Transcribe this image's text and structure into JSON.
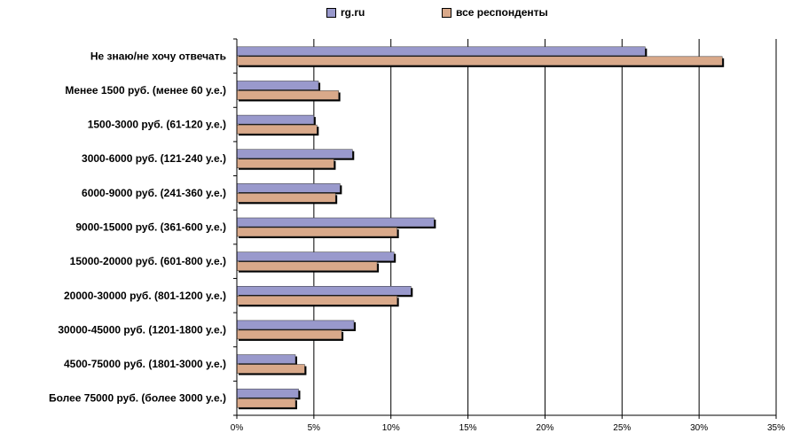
{
  "chart_data": {
    "type": "bar",
    "orientation": "horizontal",
    "categories": [
      "Не знаю/не хочу отвечать",
      "Менее 1500 руб. (менее 60 у.е.)",
      "1500-3000 руб. (61-120 у.е.)",
      "3000-6000 руб. (121-240 у.е.)",
      "6000-9000 руб. (241-360 у.е.)",
      "9000-15000 руб. (361-600 у.е.)",
      "15000-20000 руб. (601-800 у.е.)",
      "20000-30000 руб. (801-1200 у.е.)",
      "30000-45000 руб. (1201-1800 у.е.)",
      "4500-75000 руб. (1801-3000 у.е.)",
      "Более 75000 руб. (более 3000 у.е.)"
    ],
    "series": [
      {
        "name": "rg.ru",
        "color": "#9999cc",
        "values": [
          26.5,
          5.3,
          5.0,
          7.5,
          6.7,
          12.8,
          10.2,
          11.3,
          7.6,
          3.8,
          4.0
        ]
      },
      {
        "name": "все респонденты",
        "color": "#d9a98a",
        "values": [
          31.5,
          6.6,
          5.2,
          6.3,
          6.4,
          10.4,
          9.1,
          10.4,
          6.8,
          4.4,
          3.8
        ]
      }
    ],
    "x_ticks": [
      "0%",
      "5%",
      "10%",
      "15%",
      "20%",
      "25%",
      "30%",
      "35%"
    ],
    "xlim": [
      0,
      35
    ],
    "xlabel": "",
    "ylabel": "",
    "grid": "vertical",
    "legend": "top-center"
  }
}
